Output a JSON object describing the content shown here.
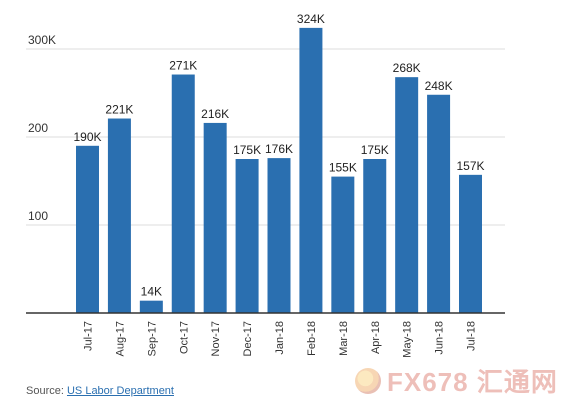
{
  "chart_data": {
    "type": "bar",
    "categories": [
      "Jul-17",
      "Aug-17",
      "Sep-17",
      "Oct-17",
      "Nov-17",
      "Dec-17",
      "Jan-18",
      "Feb-18",
      "Mar-18",
      "Apr-18",
      "May-18",
      "Jun-18",
      "Jul-18"
    ],
    "values": [
      190,
      221,
      14,
      271,
      216,
      175,
      176,
      324,
      155,
      175,
      268,
      248,
      157
    ],
    "data_labels": [
      "190K",
      "221K",
      "14K",
      "271K",
      "216K",
      "175K",
      "176K",
      "324K",
      "155K",
      "175K",
      "268K",
      "248K",
      "157K"
    ],
    "y_ticks": [
      100,
      200,
      300
    ],
    "y_tick_labels": [
      "100",
      "200",
      "300K"
    ],
    "ylim": [
      0,
      330
    ],
    "grid": true,
    "bar_color": "#2a6fb0"
  },
  "source": {
    "prefix": "Source:",
    "link_text": "US Labor Department"
  },
  "watermark": {
    "text": "FX678 汇通网"
  }
}
